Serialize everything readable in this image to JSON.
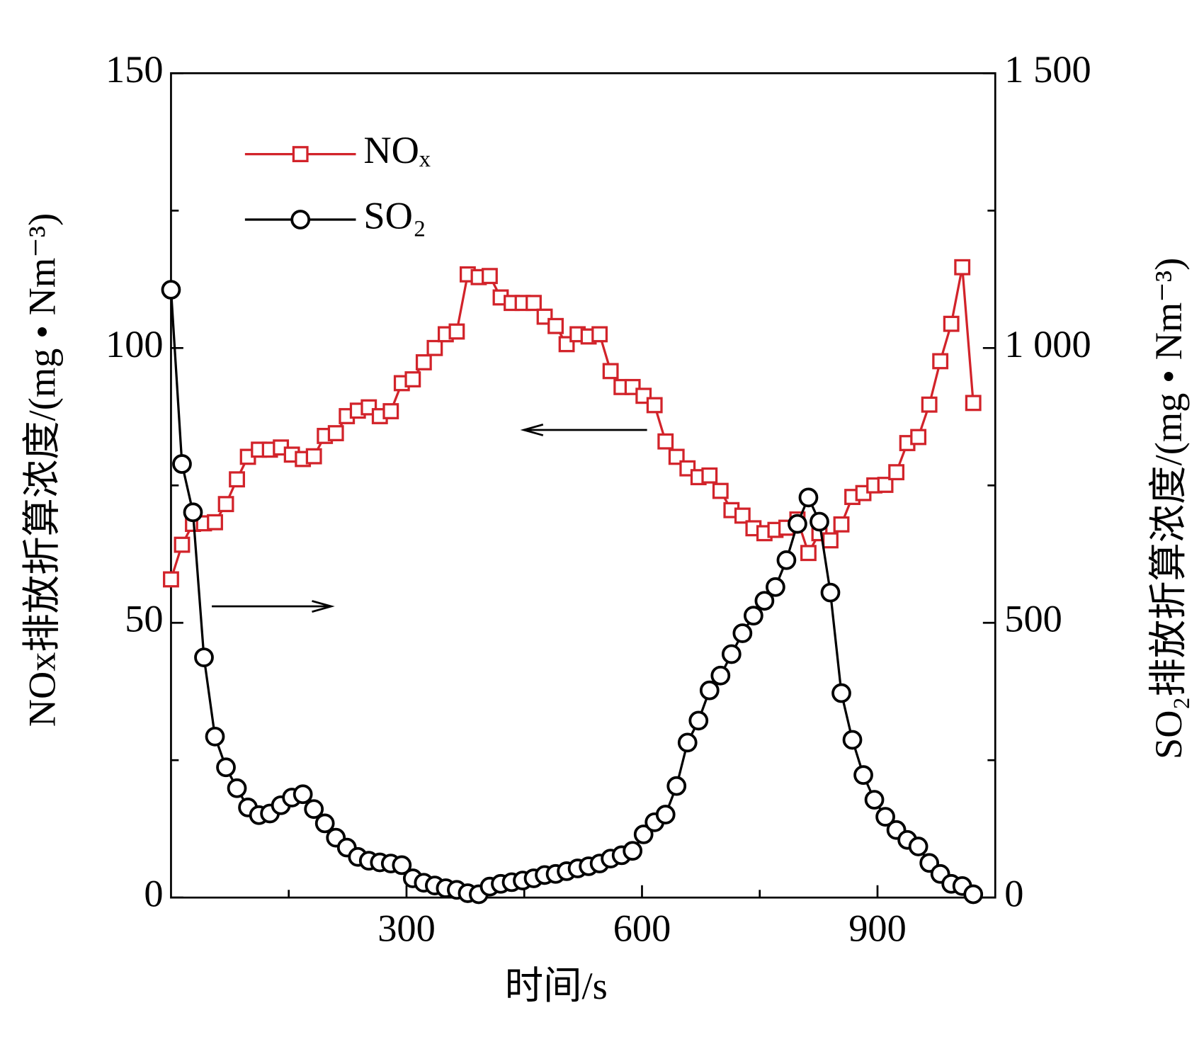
{
  "chart_data": {
    "type": "line",
    "x_label": "时间/s",
    "y_label": "NOx排放折算浓度/(mg • Nm⁻³)",
    "y2_label": "SO₂排放折算浓度/(mg • Nm⁻³)",
    "x": [
      0,
      14,
      28,
      42,
      56,
      70,
      84,
      98,
      112,
      126,
      140,
      154,
      168,
      182,
      196,
      210,
      224,
      238,
      252,
      266,
      280,
      294,
      308,
      322,
      336,
      350,
      364,
      378,
      392,
      406,
      420,
      434,
      448,
      462,
      476,
      490,
      504,
      518,
      532,
      546,
      560,
      574,
      588,
      602,
      616,
      630,
      644,
      658,
      672,
      686,
      700,
      714,
      728,
      742,
      756,
      770,
      784,
      798,
      812,
      826,
      840,
      854,
      868,
      882,
      896,
      910,
      924,
      938,
      952,
      966,
      980,
      994,
      1008,
      1022
    ],
    "series": [
      {
        "name": "NOₓ",
        "color": "#d2232a",
        "marker": "square",
        "axis": "y",
        "values": [
          57.9,
          64.2,
          68.0,
          68.1,
          68.3,
          71.6,
          76.1,
          80.2,
          81.5,
          81.5,
          81.9,
          80.6,
          79.8,
          80.3,
          84.0,
          84.5,
          87.6,
          88.6,
          89.2,
          87.6,
          88.5,
          93.6,
          94.3,
          97.4,
          100.0,
          102.5,
          103.0,
          113.4,
          112.9,
          113.1,
          109.2,
          108.2,
          108.2,
          108.2,
          105.7,
          104.0,
          100.7,
          102.5,
          102.1,
          102.5,
          95.8,
          92.9,
          92.9,
          91.3,
          89.6,
          83.0,
          80.2,
          78.1,
          76.5,
          76.8,
          74.0,
          70.5,
          69.5,
          67.2,
          66.3,
          66.9,
          67.3,
          68.8,
          62.7,
          66.3,
          65.0,
          67.9,
          72.9,
          73.6,
          75.0,
          75.1,
          77.4,
          82.7,
          83.8,
          89.7,
          97.6,
          104.4,
          114.7,
          90.0
        ]
      },
      {
        "name": "SO₂",
        "color": "#000000",
        "marker": "circle",
        "axis": "y2",
        "values": [
          1106,
          789,
          701,
          437,
          293,
          237,
          199,
          164,
          150,
          153,
          168,
          182,
          188,
          161,
          135,
          109,
          91,
          74,
          67,
          64,
          62,
          59,
          35,
          27,
          22,
          17,
          14,
          8,
          6,
          20,
          25,
          28,
          31,
          35,
          41,
          43,
          48,
          53,
          57,
          62,
          71,
          77,
          85,
          115,
          137,
          151,
          203,
          282,
          322,
          377,
          404,
          443,
          481,
          513,
          540,
          565,
          614,
          680,
          728,
          684,
          555,
          372,
          287,
          223,
          178,
          147,
          123,
          105,
          93,
          63,
          43,
          25,
          21,
          6
        ]
      }
    ],
    "xlim": [
      0,
      1050
    ],
    "xticks": [
      300,
      600,
      900
    ],
    "xminor_ticks": [
      150,
      450,
      750
    ],
    "ylim": [
      0,
      150
    ],
    "yticks": [
      0,
      50,
      100,
      150
    ],
    "yminor_ticks": [
      25,
      75,
      125
    ],
    "y2lim": [
      0,
      1500
    ],
    "y2ticks": [
      0,
      500,
      {
        "value": 1000,
        "label": "1 000"
      },
      {
        "value": 1500,
        "label": "1 500"
      }
    ],
    "y2minor_ticks": [
      250,
      750,
      1250
    ],
    "legend": "upper left",
    "grid": false
  }
}
